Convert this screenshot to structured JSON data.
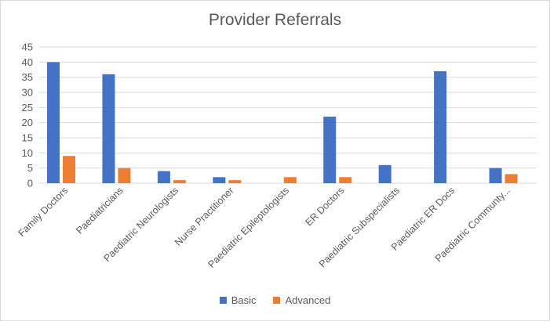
{
  "chart_data": {
    "type": "bar",
    "title": "Provider Referrals",
    "categories": [
      "Family Doctors",
      "Paediatricians",
      "Paediatric Neurologists",
      "Nurse Practitioner",
      "Paediatric Epileptologists",
      "ER Doctors",
      "Paediatric Subspecialists",
      "Paediatric ER Docs",
      "Paediatric Communty..."
    ],
    "series": [
      {
        "name": "Basic",
        "color": "#4472C4",
        "values": [
          40,
          36,
          4,
          2,
          0,
          22,
          6,
          37,
          5
        ]
      },
      {
        "name": "Advanced",
        "color": "#ED7D31",
        "values": [
          9,
          5,
          1,
          1,
          2,
          2,
          0,
          0,
          3
        ]
      }
    ],
    "ylim": [
      0,
      45
    ],
    "yticks": [
      0,
      5,
      10,
      15,
      20,
      25,
      30,
      35,
      40,
      45
    ],
    "grid": true,
    "legend_position": "bottom"
  }
}
